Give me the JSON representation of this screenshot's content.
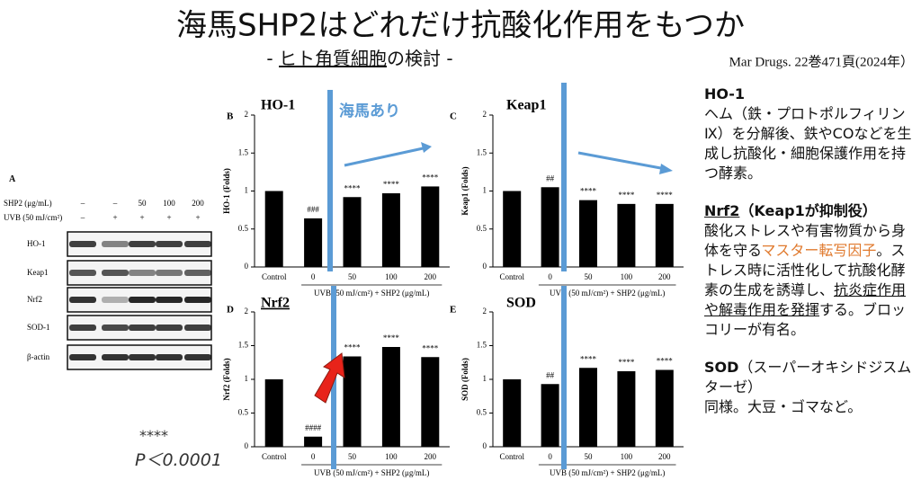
{
  "title": "海馬SHP2はどれだけ抗酸化作用をもつか",
  "subtitle": [
    "- ",
    "ヒト角質細胞",
    "の検討 -"
  ],
  "citation": "Mar Drugs. 22巻471頁(2024年）",
  "western_blot": {
    "label": "A",
    "rows": [
      {
        "label": "SHP2 (μg/mL)",
        "values": [
          "–",
          "–",
          "50",
          "100",
          "200"
        ]
      },
      {
        "label": "UVB (50 mJ/cm²)",
        "values": [
          "–",
          "+",
          "+",
          "+",
          "+"
        ]
      }
    ],
    "bands": [
      "HO-1",
      "Keap1",
      "Nrf2",
      "SOD-1",
      "β-actin"
    ]
  },
  "significance_note": [
    "****",
    "P＜0.0001"
  ],
  "notes": {
    "ho1": {
      "heading": "HO-1",
      "body": "ヘム（鉄・プロトポルフィリンⅨ）を分解後、鉄やCOなどを生成し抗酸化・細胞保護作用を持つ酵素。"
    },
    "nrf2": {
      "heading": [
        "Nrf2",
        "（Keap1が抑制役）"
      ],
      "body": [
        "酸化ストレスや有害物質から身体を守る",
        "マスター転写因子",
        "。ストレス時に活性化して抗酸化酵素の生成を誘導し、",
        "抗炎症作用や解毒作用を発揮",
        "する。ブロッコリーが有名。"
      ]
    },
    "sod": {
      "heading": "SOD",
      "heading_note": "（スーパーオキシドジスムターゼ）",
      "body": "同様。大豆・ゴマなど。"
    }
  },
  "chart_data": [
    {
      "type": "bar",
      "panel": "B",
      "title": "HO-1",
      "annotation": "海馬あり",
      "y_label": "HO-1 (Folds)",
      "x_label": "UVB (50 mJ/cm²) + SHP2 (μg/mL)",
      "categories": [
        "Control",
        "0",
        "50",
        "100",
        "200"
      ],
      "values": [
        1.0,
        0.64,
        0.92,
        0.97,
        1.06
      ],
      "significance": [
        null,
        "###",
        "****",
        "****",
        "****"
      ],
      "color": "#000000",
      "ylim": [
        0,
        2
      ],
      "yticks": [
        0,
        0.5,
        1,
        1.5,
        2
      ]
    },
    {
      "type": "bar",
      "panel": "C",
      "title": "Keap1",
      "y_label": "Keap1 (Folds)",
      "x_label": "UVB (50 mJ/cm²) + SHP2 (μg/mL)",
      "categories": [
        "Control",
        "0",
        "50",
        "100",
        "200"
      ],
      "values": [
        1.0,
        1.05,
        0.88,
        0.83,
        0.83
      ],
      "significance": [
        null,
        "##",
        "****",
        "****",
        "****"
      ],
      "color": "#000000",
      "ylim": [
        0,
        2
      ],
      "yticks": [
        0,
        0.5,
        1,
        1.5,
        2
      ]
    },
    {
      "type": "bar",
      "panel": "D",
      "title": "Nrf2",
      "y_label": "Nrf2 (Folds)",
      "x_label": "UVB (50 mJ/cm²) + SHP2 (μg/mL)",
      "categories": [
        "Control",
        "0",
        "50",
        "100",
        "200"
      ],
      "values": [
        1.0,
        0.15,
        1.34,
        1.48,
        1.33
      ],
      "significance": [
        null,
        "####",
        "****",
        "****",
        "****"
      ],
      "color": "#000000",
      "ylim": [
        0,
        2
      ],
      "yticks": [
        0,
        0.5,
        1,
        1.5,
        2
      ]
    },
    {
      "type": "bar",
      "panel": "E",
      "title": "SOD",
      "y_label": "SOD (Folds)",
      "x_label": "UVB (50 mJ/cm²) + SHP2 (μg/mL)",
      "categories": [
        "Control",
        "0",
        "50",
        "100",
        "200"
      ],
      "values": [
        1.0,
        0.93,
        1.17,
        1.12,
        1.14
      ],
      "significance": [
        null,
        "##",
        "****",
        "****",
        "****"
      ],
      "color": "#000000",
      "ylim": [
        0,
        2
      ],
      "yticks": [
        0,
        0.5,
        1,
        1.5,
        2
      ]
    }
  ]
}
